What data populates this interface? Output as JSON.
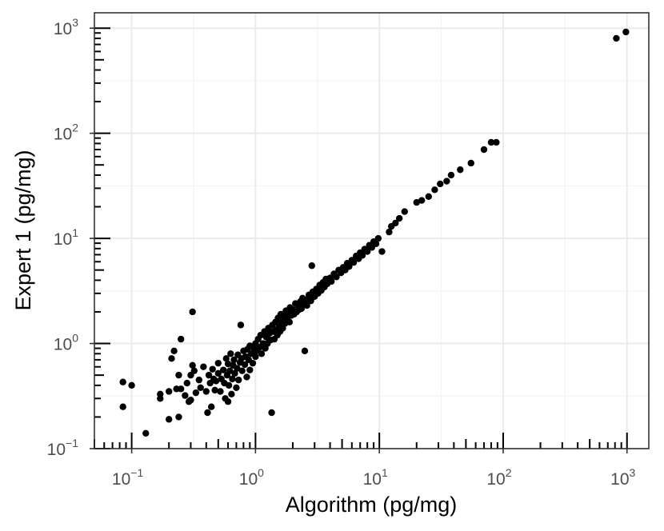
{
  "chart_data": {
    "type": "scatter",
    "title": "",
    "xlabel": "Algorithm (pg/mg)",
    "ylabel": "Expert 1 (pg/mg)",
    "x_scale": "log10",
    "y_scale": "log10",
    "xlim": [
      0.05,
      1500
    ],
    "ylim": [
      0.1,
      1400
    ],
    "grid": true,
    "colors": {
      "point": "#000000",
      "panel_border": "#333333",
      "grid_major": "#ebebeb",
      "grid_minor": "#f4f4f4",
      "tick_label": "#4d4d4d"
    },
    "x_ticks": [
      {
        "label": "10",
        "exp": "−1",
        "value": 0.1
      },
      {
        "label": "10",
        "exp": "0",
        "value": 1
      },
      {
        "label": "10",
        "exp": "1",
        "value": 10
      },
      {
        "label": "10",
        "exp": "2",
        "value": 100
      },
      {
        "label": "10",
        "exp": "3",
        "value": 1000
      }
    ],
    "y_ticks": [
      {
        "label": "10",
        "exp": "−1",
        "value": 0.1
      },
      {
        "label": "10",
        "exp": "0",
        "value": 1
      },
      {
        "label": "10",
        "exp": "1",
        "value": 10
      },
      {
        "label": "10",
        "exp": "2",
        "value": 100
      },
      {
        "label": "10",
        "exp": "3",
        "value": 1000
      }
    ],
    "series": [
      {
        "points": [
          [
            0.085,
            0.43
          ],
          [
            0.085,
            0.25
          ],
          [
            0.1,
            0.4
          ],
          [
            0.13,
            0.14
          ],
          [
            0.17,
            0.33
          ],
          [
            0.17,
            0.3
          ],
          [
            0.2,
            0.19
          ],
          [
            0.2,
            0.35
          ],
          [
            0.21,
            0.72
          ],
          [
            0.22,
            0.85
          ],
          [
            0.23,
            0.37
          ],
          [
            0.24,
            0.2
          ],
          [
            0.24,
            0.5
          ],
          [
            0.25,
            1.1
          ],
          [
            0.25,
            0.37
          ],
          [
            0.27,
            0.32
          ],
          [
            0.28,
            0.42
          ],
          [
            0.29,
            0.28
          ],
          [
            0.3,
            0.29
          ],
          [
            0.3,
            0.5
          ],
          [
            0.31,
            2.0
          ],
          [
            0.31,
            0.62
          ],
          [
            0.32,
            0.55
          ],
          [
            0.33,
            0.34
          ],
          [
            0.35,
            0.45
          ],
          [
            0.36,
            0.38
          ],
          [
            0.38,
            0.6
          ],
          [
            0.4,
            0.35
          ],
          [
            0.41,
            0.22
          ],
          [
            0.42,
            0.5
          ],
          [
            0.43,
            0.42
          ],
          [
            0.44,
            0.25
          ],
          [
            0.45,
            0.57
          ],
          [
            0.46,
            0.46
          ],
          [
            0.47,
            0.36
          ],
          [
            0.48,
            0.44
          ],
          [
            0.5,
            0.52
          ],
          [
            0.5,
            0.65
          ],
          [
            0.52,
            0.35
          ],
          [
            0.53,
            0.46
          ],
          [
            0.55,
            0.56
          ],
          [
            0.56,
            0.42
          ],
          [
            0.57,
            0.3
          ],
          [
            0.58,
            0.72
          ],
          [
            0.59,
            0.5
          ],
          [
            0.6,
            0.64
          ],
          [
            0.6,
            0.28
          ],
          [
            0.61,
            0.4
          ],
          [
            0.62,
            0.55
          ],
          [
            0.63,
            0.8
          ],
          [
            0.64,
            0.33
          ],
          [
            0.65,
            0.46
          ],
          [
            0.66,
            0.62
          ],
          [
            0.67,
            0.7
          ],
          [
            0.68,
            0.52
          ],
          [
            0.7,
            0.38
          ],
          [
            0.71,
            0.58
          ],
          [
            0.72,
            0.78
          ],
          [
            0.73,
            0.45
          ],
          [
            0.75,
            0.66
          ],
          [
            0.76,
            1.5
          ],
          [
            0.77,
            0.72
          ],
          [
            0.78,
            0.55
          ],
          [
            0.8,
            0.85
          ],
          [
            0.82,
            0.63
          ],
          [
            0.83,
            0.75
          ],
          [
            0.85,
            0.48
          ],
          [
            0.86,
            0.88
          ],
          [
            0.88,
            0.7
          ],
          [
            0.9,
            0.56
          ],
          [
            0.9,
            0.95
          ],
          [
            0.92,
            0.8
          ],
          [
            0.95,
            0.65
          ],
          [
            0.97,
            0.9
          ],
          [
            1.0,
            1.0
          ],
          [
            1.0,
            0.75
          ],
          [
            1.02,
            0.85
          ],
          [
            1.05,
            1.1
          ],
          [
            1.08,
            0.92
          ],
          [
            1.1,
            1.2
          ],
          [
            1.12,
            0.8
          ],
          [
            1.15,
            1.0
          ],
          [
            1.18,
            1.3
          ],
          [
            1.2,
            0.9
          ],
          [
            1.22,
            1.15
          ],
          [
            1.25,
            1.0
          ],
          [
            1.27,
            1.4
          ],
          [
            1.3,
            1.25
          ],
          [
            1.32,
            1.08
          ],
          [
            1.35,
            0.22
          ],
          [
            1.37,
            1.5
          ],
          [
            1.4,
            1.3
          ],
          [
            1.42,
            1.1
          ],
          [
            1.45,
            1.6
          ],
          [
            1.48,
            1.35
          ],
          [
            1.5,
            1.2
          ],
          [
            1.52,
            1.75
          ],
          [
            1.55,
            1.45
          ],
          [
            1.58,
            1.3
          ],
          [
            1.6,
            1.9
          ],
          [
            1.63,
            1.6
          ],
          [
            1.66,
            1.4
          ],
          [
            1.7,
            1.8
          ],
          [
            1.73,
            1.55
          ],
          [
            1.76,
            2.05
          ],
          [
            1.8,
            1.7
          ],
          [
            1.85,
            1.95
          ],
          [
            1.88,
            1.6
          ],
          [
            1.9,
            2.2
          ],
          [
            1.95,
            1.85
          ],
          [
            2.0,
            2.1
          ],
          [
            2.05,
            1.9
          ],
          [
            2.1,
            2.4
          ],
          [
            2.15,
            2.0
          ],
          [
            2.2,
            2.3
          ],
          [
            2.25,
            2.1
          ],
          [
            2.3,
            2.5
          ],
          [
            2.35,
            2.15
          ],
          [
            2.4,
            2.7
          ],
          [
            2.45,
            2.35
          ],
          [
            2.5,
            0.85
          ],
          [
            2.55,
            2.6
          ],
          [
            2.6,
            2.3
          ],
          [
            2.7,
            2.9
          ],
          [
            2.8,
            2.55
          ],
          [
            2.85,
            5.5
          ],
          [
            2.9,
            3.1
          ],
          [
            3.0,
            2.8
          ],
          [
            3.1,
            3.3
          ],
          [
            3.2,
            3.0
          ],
          [
            3.3,
            3.6
          ],
          [
            3.4,
            3.2
          ],
          [
            3.5,
            3.8
          ],
          [
            3.6,
            3.45
          ],
          [
            3.7,
            4.1
          ],
          [
            3.8,
            3.7
          ],
          [
            4.0,
            4.2
          ],
          [
            4.1,
            3.9
          ],
          [
            4.3,
            4.6
          ],
          [
            4.5,
            4.3
          ],
          [
            4.7,
            5.0
          ],
          [
            4.9,
            4.7
          ],
          [
            5.1,
            5.3
          ],
          [
            5.3,
            5.0
          ],
          [
            5.5,
            5.8
          ],
          [
            5.7,
            5.4
          ],
          [
            6.0,
            6.2
          ],
          [
            6.2,
            5.9
          ],
          [
            6.5,
            6.8
          ],
          [
            6.8,
            6.4
          ],
          [
            7.0,
            7.3
          ],
          [
            7.3,
            6.9
          ],
          [
            7.6,
            7.9
          ],
          [
            8.0,
            7.5
          ],
          [
            8.3,
            8.6
          ],
          [
            8.7,
            8.2
          ],
          [
            9.0,
            9.3
          ],
          [
            9.4,
            8.9
          ],
          [
            9.8,
            10.0
          ],
          [
            10.5,
            7.5
          ],
          [
            12.0,
            11.5
          ],
          [
            12.5,
            13.0
          ],
          [
            13.5,
            14.0
          ],
          [
            14.5,
            15.5
          ],
          [
            16.0,
            18.0
          ],
          [
            20.0,
            22.0
          ],
          [
            22.0,
            23.0
          ],
          [
            25.0,
            25.0
          ],
          [
            28.0,
            29.0
          ],
          [
            31.0,
            33.0
          ],
          [
            35.0,
            35.0
          ],
          [
            38.0,
            40.0
          ],
          [
            45.0,
            45.0
          ],
          [
            55.0,
            52.0
          ],
          [
            70.0,
            70.0
          ],
          [
            80.0,
            82.0
          ],
          [
            88.0,
            82.0
          ],
          [
            820.0,
            800.0
          ],
          [
            980.0,
            920.0
          ]
        ]
      }
    ]
  }
}
